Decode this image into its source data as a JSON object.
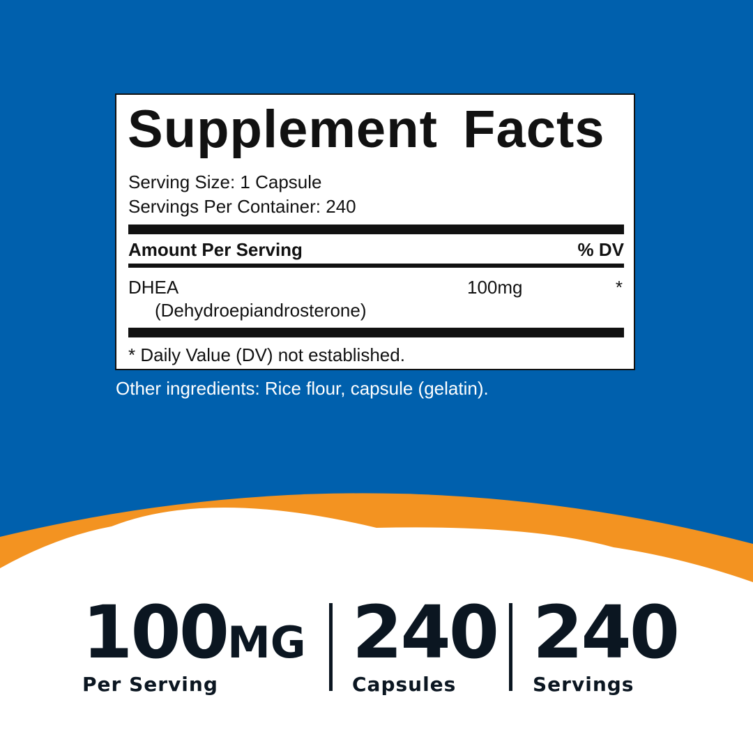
{
  "colors": {
    "background_blue": "#0060ad",
    "accent_orange": "#f39321",
    "text_dark": "#0b1621"
  },
  "facts": {
    "title": "Supplement Facts",
    "serving_size": "Serving Size: 1 Capsule",
    "servings_per_container": "Servings Per Container: 240",
    "amount_header": "Amount Per Serving",
    "dv_header": "% DV",
    "ingredient_name": "DHEA",
    "ingredient_sub": "(Dehydroepiandrosterone)",
    "ingredient_amount": "100mg",
    "ingredient_dv": "*",
    "footnote": "* Daily Value (DV) not established."
  },
  "other_ingredients": "Other ingredients: Rice flour, capsule (gelatin).",
  "stats": [
    {
      "value": "100",
      "unit": "MG",
      "label": "Per Serving"
    },
    {
      "value": "240",
      "unit": "",
      "label": "Capsules"
    },
    {
      "value": "240",
      "unit": "",
      "label": "Servings"
    }
  ]
}
